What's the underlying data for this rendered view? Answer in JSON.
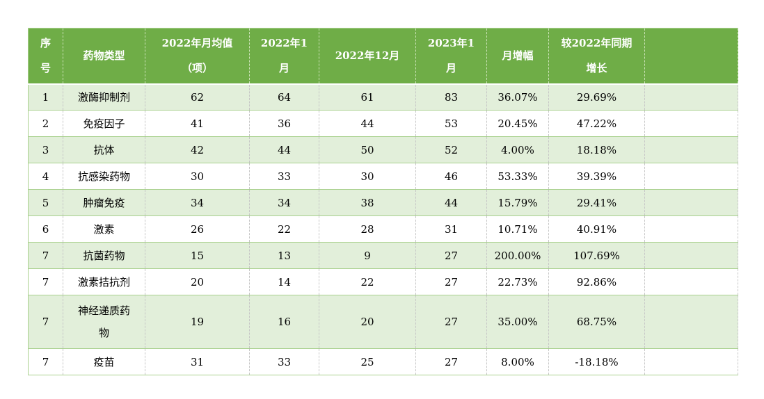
{
  "table": {
    "headers": {
      "serial": "序\n号",
      "drug_type": "药物类型",
      "avg_2022": "2022年月均值\n（项）",
      "jan_2022": "2022年1\n月",
      "dec_2022": "2022年12月",
      "jan_2023": "2023年1\n月",
      "mom_growth": "月增幅",
      "yoy_growth": "较2022年同期\n增长",
      "empty": ""
    },
    "rows": [
      {
        "no": "1",
        "type": "激酶抑制剂",
        "avg_2022": "62",
        "jan_2022": "64",
        "dec_2022": "61",
        "jan_2023": "83",
        "mom_growth": "36.07%",
        "yoy_growth": "29.69%"
      },
      {
        "no": "2",
        "type": "免疫因子",
        "avg_2022": "41",
        "jan_2022": "36",
        "dec_2022": "44",
        "jan_2023": "53",
        "mom_growth": "20.45%",
        "yoy_growth": "47.22%"
      },
      {
        "no": "3",
        "type": "抗体",
        "avg_2022": "42",
        "jan_2022": "44",
        "dec_2022": "50",
        "jan_2023": "52",
        "mom_growth": "4.00%",
        "yoy_growth": "18.18%"
      },
      {
        "no": "4",
        "type": "抗感染药物",
        "avg_2022": "30",
        "jan_2022": "33",
        "dec_2022": "30",
        "jan_2023": "46",
        "mom_growth": "53.33%",
        "yoy_growth": "39.39%"
      },
      {
        "no": "5",
        "type": "肿瘤免疫",
        "avg_2022": "34",
        "jan_2022": "34",
        "dec_2022": "38",
        "jan_2023": "44",
        "mom_growth": "15.79%",
        "yoy_growth": "29.41%"
      },
      {
        "no": "6",
        "type": "激素",
        "avg_2022": "26",
        "jan_2022": "22",
        "dec_2022": "28",
        "jan_2023": "31",
        "mom_growth": "10.71%",
        "yoy_growth": "40.91%"
      },
      {
        "no": "7",
        "type": "抗菌药物",
        "avg_2022": "15",
        "jan_2022": "13",
        "dec_2022": "9",
        "jan_2023": "27",
        "mom_growth": "200.00%",
        "yoy_growth": "107.69%"
      },
      {
        "no": "7",
        "type": "激素拮抗剂",
        "avg_2022": "20",
        "jan_2022": "14",
        "dec_2022": "22",
        "jan_2023": "27",
        "mom_growth": "22.73%",
        "yoy_growth": "92.86%"
      },
      {
        "no": "7",
        "type": "神经递质药物",
        "avg_2022": "19",
        "jan_2022": "16",
        "dec_2022": "20",
        "jan_2023": "27",
        "mom_growth": "35.00%",
        "yoy_growth": "68.75%"
      },
      {
        "no": "7",
        "type": "疫苗",
        "avg_2022": "31",
        "jan_2022": "33",
        "dec_2022": "25",
        "jan_2023": "27",
        "mom_growth": "8.00%",
        "yoy_growth": "-18.18%"
      }
    ],
    "colors": {
      "header_bg": "#6fad47",
      "header_text": "#ffffff",
      "row_alt_bg": "#e2efda",
      "row_bg": "#ffffff",
      "grid_green": "#a9d18e",
      "grid_dash_gray": "#c6c6c6",
      "body_text": "#000000"
    }
  }
}
